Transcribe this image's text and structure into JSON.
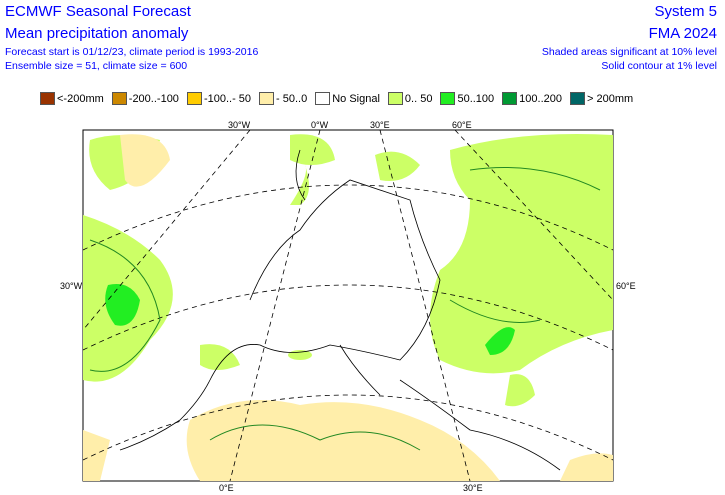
{
  "header": {
    "title": "ECMWF Seasonal Forecast",
    "subtitle": "Mean precipitation anomaly",
    "forecast_info": "Forecast start is 01/12/23, climate period is 1993-2016",
    "ensemble_info": "Ensemble size = 51, climate size = 600",
    "system": "System 5",
    "period": "FMA 2024",
    "significance_shaded": "Shaded areas significant at 10% level",
    "significance_contour": "Solid contour at 1% level"
  },
  "legend": [
    {
      "label": "<-200mm",
      "color": "#993300"
    },
    {
      "label": "-200..-100",
      "color": "#cc8800"
    },
    {
      "label": "-100..- 50",
      "color": "#ffcc00"
    },
    {
      "label": "- 50..0",
      "color": "#ffeeaa"
    },
    {
      "label": "No Signal",
      "color": "#ffffff"
    },
    {
      "label": "0.. 50",
      "color": "#ccff66"
    },
    {
      "label": "50..100",
      "color": "#22ee22"
    },
    {
      "label": "100..200",
      "color": "#009933"
    },
    {
      "label": "> 200mm",
      "color": "#006666"
    }
  ],
  "map_labels": {
    "top": [
      "30°W",
      "0°W",
      "30°E",
      "60°E"
    ],
    "left": "30°W",
    "right": "60°E",
    "bottom": [
      "0°E",
      "30°E"
    ]
  }
}
